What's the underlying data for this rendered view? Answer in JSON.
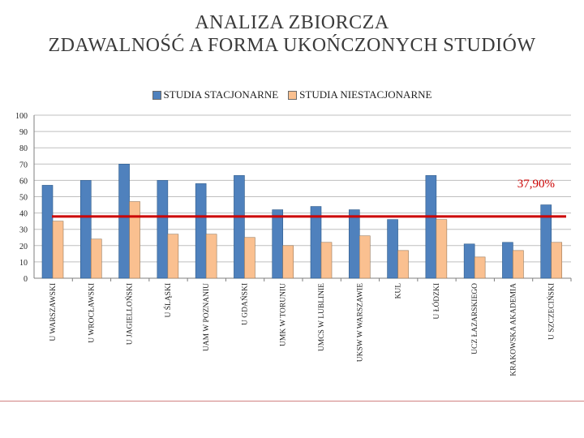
{
  "title": {
    "line1": "ANALIZA ZBIORCZA",
    "line2": "ZDAWALNOŚĆ A FORMA UKOŃCZONYCH STUDIÓW"
  },
  "colors": {
    "stacjonarne": "#4f81bd",
    "niestacjonarne": "#fac090",
    "reference_line": "#cc0000",
    "grid": "#bfbfbf"
  },
  "chart_data": {
    "type": "bar",
    "categories": [
      "U WARSZAWSKI",
      "U WROCŁAWSKI",
      "U JAGIELLOŃSKI",
      "U ŚLĄSKI",
      "UAM W POZNANIU",
      "U GDAŃSKI",
      "UMK W TORUNIU",
      "UMCS W LUBLINIE",
      "UKSW W WARSZAWIE",
      "KUL",
      "U ŁÓDZKI",
      "UCZ ŁAZARSKIEGO",
      "KRAKOWSKA AKADEMIA",
      "U SZCZECIŃSKI"
    ],
    "series": [
      {
        "name": "STUDIA STACJONARNE",
        "values": [
          57,
          60,
          70,
          60,
          58,
          63,
          42,
          44,
          42,
          36,
          63,
          21,
          22,
          45
        ]
      },
      {
        "name": "STUDIA NIESTACJONARNE",
        "values": [
          35,
          24,
          47,
          27,
          27,
          25,
          20,
          22,
          26,
          17,
          36,
          13,
          17,
          22
        ]
      }
    ],
    "reference_line": {
      "value": 37.9,
      "label": "37,90%"
    },
    "ylim": [
      0,
      100
    ],
    "yticks": [
      0,
      10,
      20,
      30,
      40,
      50,
      60,
      70,
      80,
      90,
      100
    ],
    "grid": true,
    "legend_position": "top"
  }
}
